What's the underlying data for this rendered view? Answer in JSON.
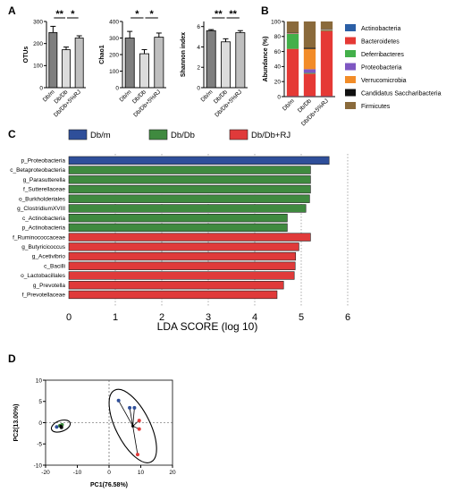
{
  "panels": {
    "A": "A",
    "B": "B",
    "C": "C",
    "D": "D"
  },
  "chart_data": [
    {
      "type": "bar",
      "panel": "A",
      "ylabel": "OTUs",
      "categories": [
        "Db/m",
        "Db/Db",
        "Db/Db+5%RJ"
      ],
      "values": [
        250,
        172,
        225
      ],
      "errors": [
        28,
        12,
        10
      ],
      "yticks": [
        0,
        100,
        200,
        300
      ],
      "ylim": [
        0,
        300
      ],
      "bar_colors": [
        "#7f7f7f",
        "#dcdcdc",
        "#bfbfbf"
      ],
      "significance": [
        {
          "from": 0,
          "to": 1,
          "label": "**"
        },
        {
          "from": 1,
          "to": 2,
          "label": "*"
        }
      ]
    },
    {
      "type": "bar",
      "panel": "A",
      "ylabel": "Chao1",
      "categories": [
        "Db/m",
        "Db/Db",
        "Db/Db+5%RJ"
      ],
      "values": [
        300,
        205,
        305
      ],
      "errors": [
        40,
        25,
        25
      ],
      "yticks": [
        0,
        100,
        200,
        300,
        400
      ],
      "ylim": [
        0,
        400
      ],
      "bar_colors": [
        "#7f7f7f",
        "#dcdcdc",
        "#bfbfbf"
      ],
      "significance": [
        {
          "from": 0,
          "to": 1,
          "label": "*"
        },
        {
          "from": 1,
          "to": 2,
          "label": "*"
        }
      ]
    },
    {
      "type": "bar",
      "panel": "A",
      "ylabel": "Shannon index",
      "categories": [
        "Db/m",
        "Db/Db",
        "Db/Db+5%RJ"
      ],
      "values": [
        5.6,
        4.5,
        5.4
      ],
      "errors": [
        0.1,
        0.3,
        0.2
      ],
      "yticks": [
        0,
        2,
        4,
        6
      ],
      "ylim": [
        0,
        6.5
      ],
      "bar_colors": [
        "#7f7f7f",
        "#dcdcdc",
        "#bfbfbf"
      ],
      "significance": [
        {
          "from": 0,
          "to": 1,
          "label": "**"
        },
        {
          "from": 1,
          "to": 2,
          "label": "**"
        }
      ]
    },
    {
      "type": "bar",
      "panel": "B",
      "stacked": true,
      "ylabel": "Abundance (%)",
      "categories": [
        "Db/m",
        "Db/Db",
        "Db/Db+5%RJ"
      ],
      "yticks": [
        0,
        20,
        40,
        60,
        80,
        100
      ],
      "ylim": [
        0,
        100
      ],
      "series": [
        {
          "name": "Actinobacteria",
          "color": "#2b5fa6",
          "values": [
            0.5,
            0.5,
            0.5
          ]
        },
        {
          "name": "Bacteroidetes",
          "color": "#e53935",
          "values": [
            63,
            30,
            87
          ]
        },
        {
          "name": "Deferribacteres",
          "color": "#43b04a",
          "values": [
            20,
            1,
            1
          ]
        },
        {
          "name": "Proteobacteria",
          "color": "#7e57c2",
          "values": [
            0.5,
            5,
            0.5
          ]
        },
        {
          "name": "Verrucomicrobia",
          "color": "#f28c28",
          "values": [
            0.5,
            27,
            0.5
          ]
        },
        {
          "name": "Candidatus Saccharibacteria",
          "color": "#111111",
          "values": [
            0.5,
            1.5,
            0.5
          ]
        },
        {
          "name": "Firmicutes",
          "color": "#8a6a3b",
          "values": [
            15,
            35,
            10
          ]
        }
      ]
    },
    {
      "type": "bar",
      "panel": "C",
      "orientation": "horizontal",
      "xlabel": "LDA SCORE (log 10)",
      "xlim": [
        0,
        6
      ],
      "xticks": [
        0,
        1,
        2,
        3,
        4,
        5,
        6
      ],
      "legend": [
        {
          "name": "Db/m",
          "color": "#2f4f9a"
        },
        {
          "name": "Db/Db",
          "color": "#3f8a3f"
        },
        {
          "name": "Db/Db+RJ",
          "color": "#e03a3a"
        }
      ],
      "categories": [
        "p_Proteobacteria",
        "c_Betaproteobacteria",
        "g_Parasutterella",
        "f_Sutterellaceae",
        "o_Burkholderiales",
        "g_ClostridiumXVIII",
        "c_Actinobacteria",
        "p_Actinobacteria",
        "f_Ruminococcaceae",
        "g_Butyricicoccus",
        "g_Acetivibrio",
        "c_Bacilli",
        "o_Lactobacillales",
        "g_Prevotella",
        "f_Prevotellaceae"
      ],
      "values": [
        5.6,
        5.2,
        5.2,
        5.2,
        5.18,
        5.1,
        4.7,
        4.7,
        5.2,
        4.95,
        4.88,
        4.87,
        4.85,
        4.62,
        4.48
      ],
      "groups": [
        0,
        1,
        1,
        1,
        1,
        1,
        1,
        1,
        2,
        2,
        2,
        2,
        2,
        2,
        2
      ]
    },
    {
      "type": "scatter",
      "panel": "D",
      "xlabel": "PC1(76.58%)",
      "ylabel": "PC2(13.00%)",
      "xlim": [
        -20,
        20
      ],
      "ylim": [
        -10,
        10
      ],
      "xticks": [
        -20,
        -10,
        0,
        10,
        20
      ],
      "yticks": [
        -10,
        -5,
        0,
        5,
        10
      ],
      "clusters": [
        {
          "center": [
            -15.2,
            -0.8
          ],
          "points": [
            {
              "x": -16.5,
              "y": -1.0,
              "color": "#2f4f9a"
            },
            {
              "x": -15.5,
              "y": -0.7,
              "color": "#3f8a3f"
            },
            {
              "x": -14.8,
              "y": -0.5,
              "color": "#3f8a3f"
            },
            {
              "x": -15.0,
              "y": -1.1,
              "color": "#111111"
            }
          ]
        },
        {
          "center": [
            7.5,
            -0.8
          ],
          "points": [
            {
              "x": 3.0,
              "y": 5.2,
              "color": "#2f4f9a"
            },
            {
              "x": 6.5,
              "y": 3.5,
              "color": "#2f4f9a"
            },
            {
              "x": 8.0,
              "y": 3.5,
              "color": "#2f4f9a"
            },
            {
              "x": 9.5,
              "y": 0.5,
              "color": "#e03a3a"
            },
            {
              "x": 9.5,
              "y": -1.5,
              "color": "#e03a3a"
            },
            {
              "x": 9.0,
              "y": -7.5,
              "color": "#e03a3a"
            }
          ]
        }
      ]
    }
  ]
}
